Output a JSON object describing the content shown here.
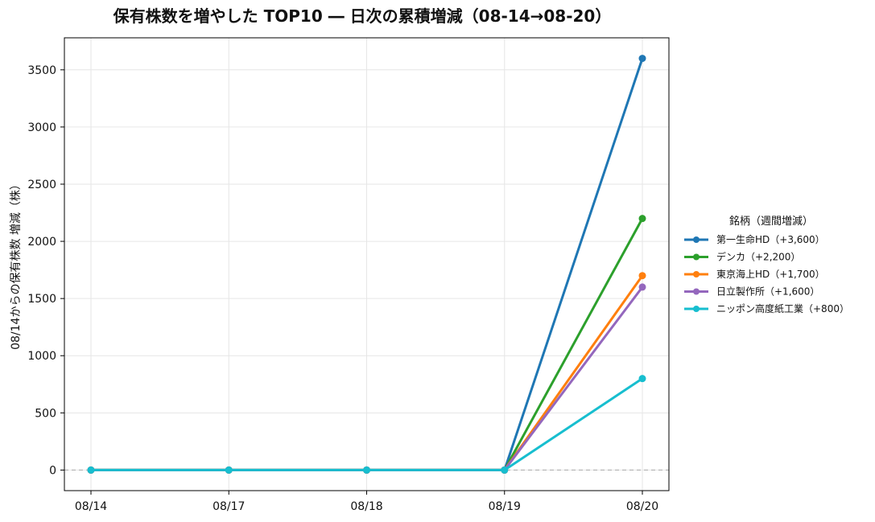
{
  "chart_data": {
    "type": "line",
    "title": "保有株数を増やした TOP10 ― 日次の累積増減（08-14→08-20）",
    "xlabel": "",
    "ylabel": "08/14からの保有株数 増減（株）",
    "x": [
      "08/14",
      "08/17",
      "08/18",
      "08/19",
      "08/20"
    ],
    "ylim": [
      -180,
      3780
    ],
    "yticks": [
      0,
      500,
      1000,
      1500,
      2000,
      2500,
      3000,
      3500
    ],
    "grid": true,
    "zero_line": true,
    "legend": {
      "title": "銘柄（週間増減）",
      "position": "right"
    },
    "series": [
      {
        "name": "第一生命HD（+3,600）",
        "color": "#1f77b4",
        "values": [
          0,
          0,
          0,
          0,
          3600
        ]
      },
      {
        "name": "デンカ（+2,200）",
        "color": "#2ca02c",
        "values": [
          0,
          0,
          0,
          0,
          2200
        ]
      },
      {
        "name": "東京海上HD（+1,700）",
        "color": "#ff7f0e",
        "values": [
          0,
          0,
          0,
          0,
          1700
        ]
      },
      {
        "name": "日立製作所（+1,600）",
        "color": "#9467bd",
        "values": [
          0,
          0,
          0,
          0,
          1600
        ]
      },
      {
        "name": "ニッポン高度紙工業（+800）",
        "color": "#17becf",
        "values": [
          0,
          0,
          0,
          0,
          800
        ]
      }
    ]
  }
}
